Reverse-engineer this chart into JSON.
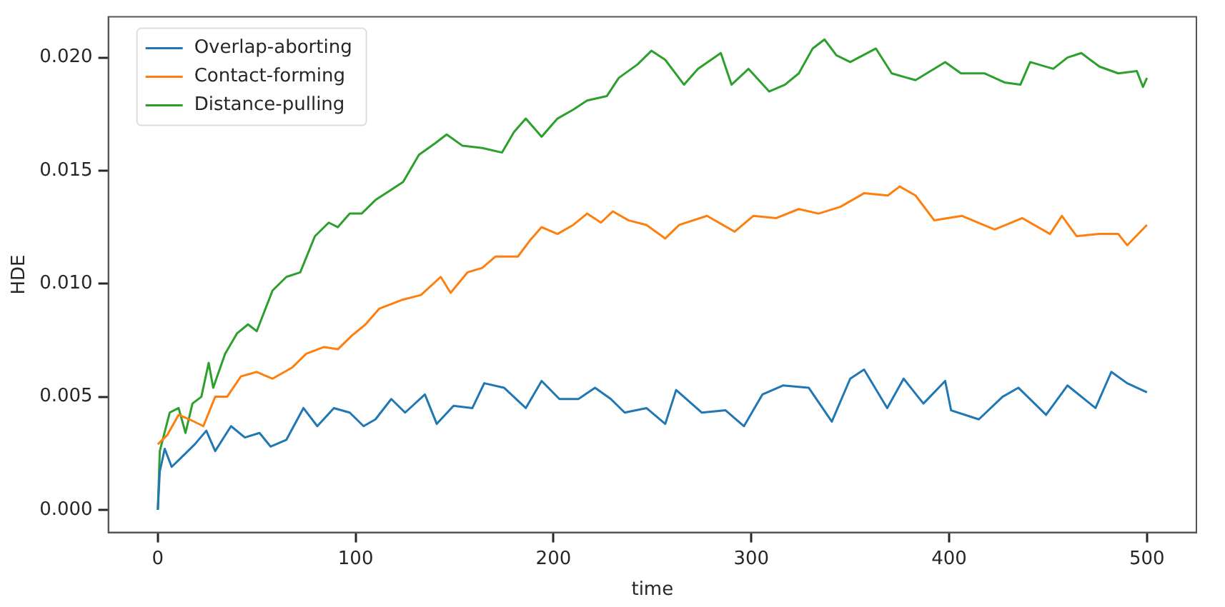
{
  "chart_data": {
    "type": "line",
    "xlabel": "time",
    "ylabel": "HDE",
    "xlim": [
      -25,
      525
    ],
    "xticks": [
      0,
      100,
      200,
      300,
      400,
      500
    ],
    "ylim": [
      -0.001,
      0.0218
    ],
    "yticks": [
      {
        "value": 0,
        "label": "0.000"
      },
      {
        "value": 0.005,
        "label": "0.005"
      },
      {
        "value": 0.01,
        "label": "0.010"
      },
      {
        "value": 0.015,
        "label": "0.015"
      },
      {
        "value": 0.02,
        "label": "0.020"
      }
    ],
    "grid": false,
    "legend": "top left",
    "marker": "none",
    "line_style": "solid",
    "series": [
      {
        "name": "Overlap-aborting",
        "color": "#1f77b4",
        "x": [
          0,
          1,
          3.5,
          7,
          11.7,
          18.7,
          24.5,
          29,
          37,
          44,
          51.4,
          57,
          65,
          73.6,
          80.6,
          89,
          97,
          104,
          110,
          118,
          125,
          135,
          141,
          149.5,
          159,
          165,
          175,
          186,
          194,
          203,
          212.6,
          221,
          229,
          236,
          247,
          256.5,
          262,
          275,
          287,
          296.3,
          305.6,
          316,
          329,
          340.7,
          350,
          357,
          368.7,
          377,
          387,
          398,
          401,
          415,
          427,
          435,
          449,
          459.8,
          474,
          482,
          490,
          500
        ],
        "values": [
          0,
          0.0017,
          0.0027,
          0.0019,
          0.0023,
          0.0029,
          0.0035,
          0.0026,
          0.0037,
          0.0032,
          0.0034,
          0.0028,
          0.0031,
          0.0045,
          0.0037,
          0.0045,
          0.0043,
          0.0037,
          0.004,
          0.0049,
          0.0043,
          0.0051,
          0.0038,
          0.0046,
          0.0045,
          0.0056,
          0.0054,
          0.0045,
          0.0057,
          0.0049,
          0.0049,
          0.0054,
          0.0049,
          0.0043,
          0.0045,
          0.0038,
          0.0053,
          0.0043,
          0.0044,
          0.0037,
          0.0051,
          0.0055,
          0.0054,
          0.0039,
          0.0058,
          0.0062,
          0.0045,
          0.0058,
          0.0047,
          0.0057,
          0.0044,
          0.004,
          0.005,
          0.0054,
          0.0042,
          0.0055,
          0.0045,
          0.0061,
          0.0056,
          0.0052
        ]
      },
      {
        "name": "Contact-forming",
        "color": "#ff7f0e",
        "x": [
          0,
          4.7,
          10.5,
          16,
          23,
          29,
          35,
          42,
          50,
          58,
          68,
          75,
          84,
          91,
          98,
          105,
          112,
          124,
          133,
          143,
          148,
          156.5,
          164,
          170.6,
          182,
          188,
          194,
          202,
          210,
          217,
          224,
          230,
          238,
          247,
          256.5,
          263.6,
          277.6,
          291.6,
          301,
          312.6,
          324,
          334,
          345,
          357,
          369,
          375,
          383,
          392.5,
          406.5,
          423,
          437,
          451,
          457,
          464.5,
          476,
          485.5,
          490,
          500
        ],
        "values": [
          0.0029,
          0.0033,
          0.0042,
          0.004,
          0.0037,
          0.005,
          0.005,
          0.0059,
          0.0061,
          0.0058,
          0.0063,
          0.0069,
          0.0072,
          0.0071,
          0.0077,
          0.0082,
          0.0089,
          0.0093,
          0.0095,
          0.0103,
          0.0096,
          0.0105,
          0.0107,
          0.0112,
          0.0112,
          0.0119,
          0.0125,
          0.0122,
          0.0126,
          0.0131,
          0.0127,
          0.0132,
          0.0128,
          0.0126,
          0.012,
          0.0126,
          0.013,
          0.0123,
          0.013,
          0.0129,
          0.0133,
          0.0131,
          0.0134,
          0.014,
          0.0139,
          0.0143,
          0.0139,
          0.0128,
          0.013,
          0.0124,
          0.0129,
          0.0122,
          0.013,
          0.0121,
          0.0122,
          0.0122,
          0.0117,
          0.0126
        ]
      },
      {
        "name": "Distance-pulling",
        "color": "#2ca02c",
        "x": [
          0,
          1,
          6,
          10.5,
          14,
          17.5,
          22,
          25.7,
          28,
          34,
          40,
          45.6,
          50,
          58,
          65,
          72,
          79.4,
          86.4,
          91,
          97,
          103,
          110,
          117,
          124,
          132,
          140,
          146,
          154,
          164,
          174,
          180,
          186,
          194,
          202,
          210,
          217,
          227,
          233,
          242.5,
          249.5,
          256.5,
          266,
          273,
          284.6,
          290,
          298.6,
          309,
          317,
          324,
          331,
          337,
          343,
          350,
          363,
          371,
          383,
          398,
          406,
          418,
          428,
          436,
          441,
          452.6,
          459.8,
          466.8,
          476,
          485.5,
          494.9,
          498,
          500
        ],
        "values": [
          0,
          0.0026,
          0.0043,
          0.0045,
          0.0034,
          0.0047,
          0.005,
          0.0065,
          0.0054,
          0.0069,
          0.0078,
          0.0082,
          0.0079,
          0.0097,
          0.0103,
          0.0105,
          0.0121,
          0.0127,
          0.0125,
          0.0131,
          0.0131,
          0.0137,
          0.0141,
          0.0145,
          0.0157,
          0.0162,
          0.0166,
          0.0161,
          0.016,
          0.0158,
          0.0167,
          0.0173,
          0.0165,
          0.0173,
          0.0177,
          0.0181,
          0.0183,
          0.0191,
          0.0197,
          0.0203,
          0.0199,
          0.0188,
          0.0195,
          0.0202,
          0.0188,
          0.0195,
          0.0185,
          0.0188,
          0.0193,
          0.0204,
          0.0208,
          0.0201,
          0.0198,
          0.0204,
          0.0193,
          0.019,
          0.0198,
          0.0193,
          0.0193,
          0.0189,
          0.0188,
          0.0198,
          0.0195,
          0.02,
          0.0202,
          0.0196,
          0.0193,
          0.0194,
          0.0187,
          0.0191
        ]
      }
    ]
  }
}
